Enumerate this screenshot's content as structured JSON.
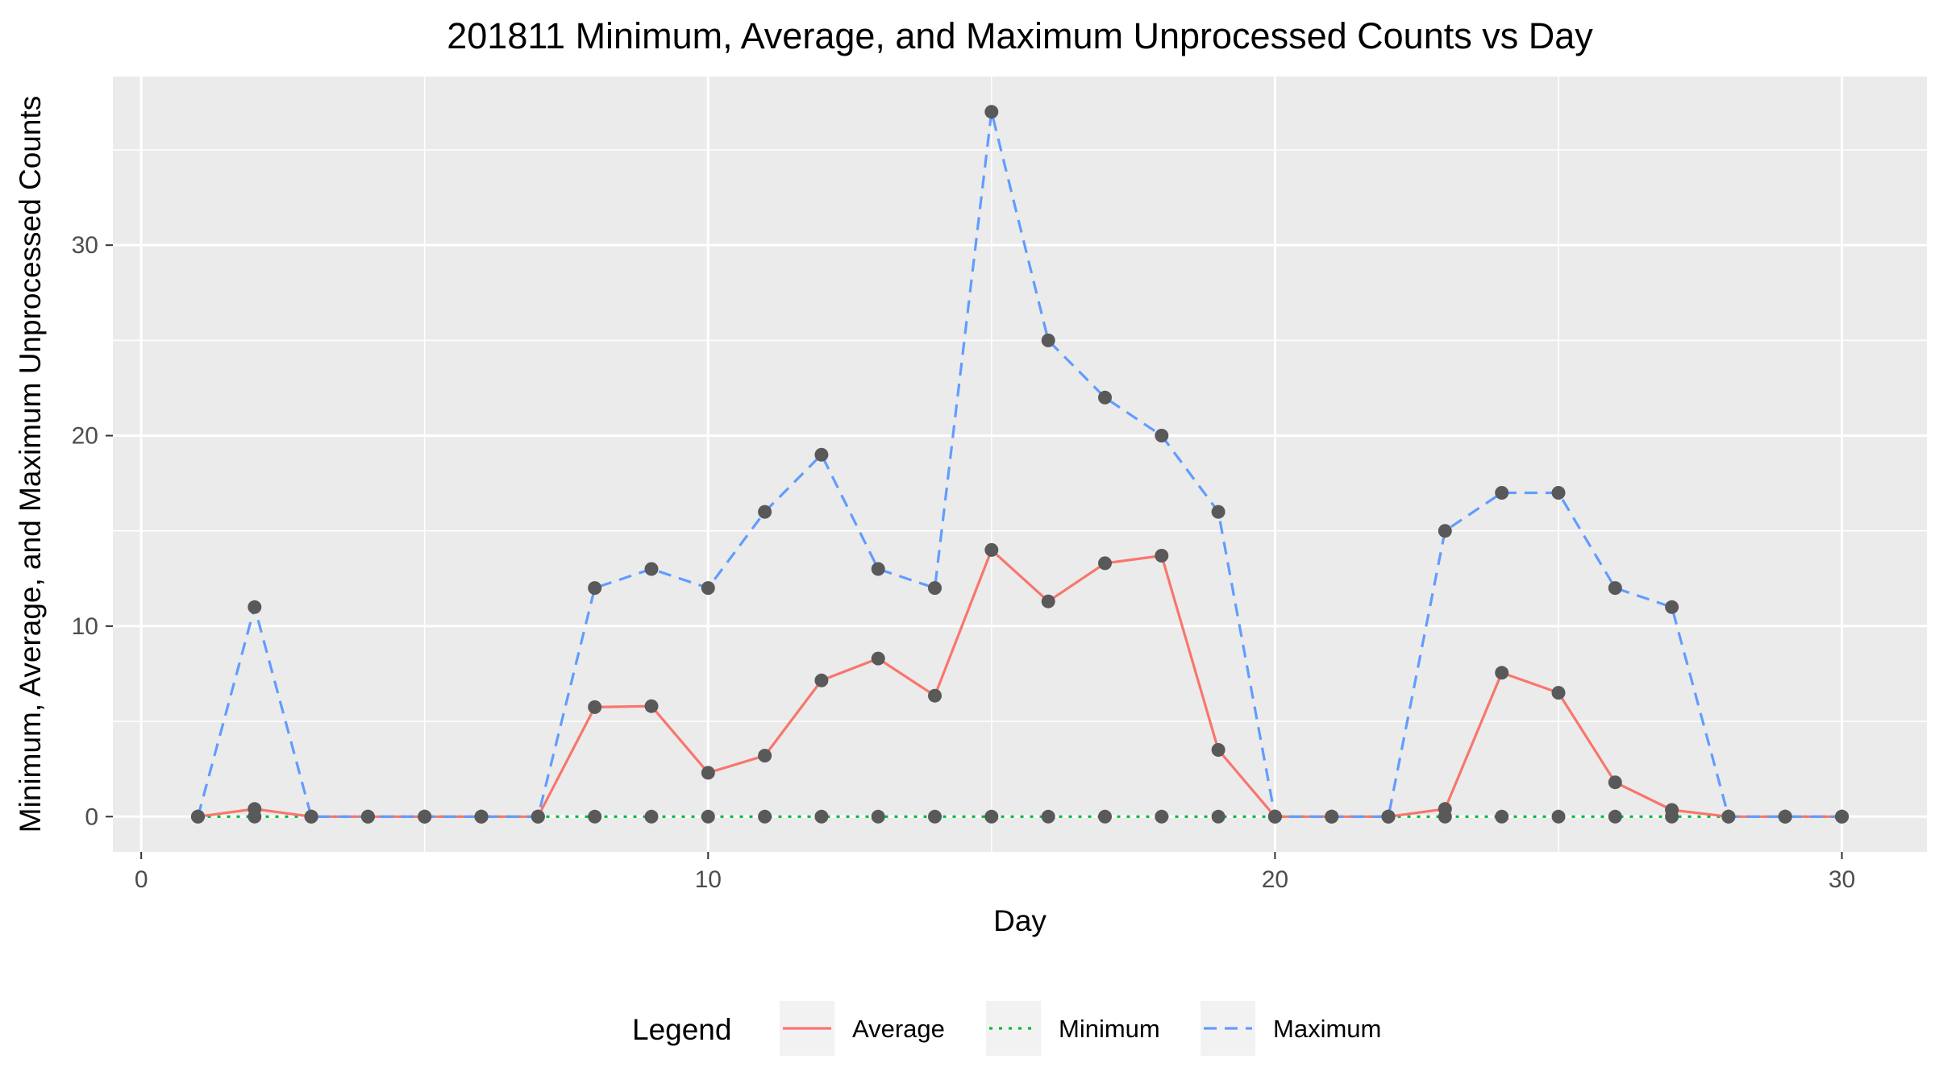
{
  "chart_data": {
    "type": "line",
    "title": "201811 Minimum, Average, and Maximum Unprocessed Counts vs Day",
    "xlabel": "Day",
    "ylabel": "Minimum, Average, and Maximum Unprocessed Counts",
    "xlim": [
      -0.5,
      31.5
    ],
    "ylim": [
      -1.85,
      38.85
    ],
    "x_ticks": [
      0,
      10,
      20,
      30
    ],
    "x_tick_labels": [
      "0",
      "10",
      "20",
      "30"
    ],
    "x_minor_ticks": [
      5,
      15,
      25
    ],
    "y_ticks": [
      0,
      10,
      20,
      30
    ],
    "y_tick_labels": [
      "0",
      "10",
      "20",
      "30"
    ],
    "y_minor_ticks": [
      5,
      15,
      25,
      35
    ],
    "grid": true,
    "legend_position": "bottom",
    "legend_title": "Legend",
    "point_color": "#595959",
    "x": [
      1,
      2,
      3,
      4,
      5,
      6,
      7,
      8,
      9,
      10,
      11,
      12,
      13,
      14,
      15,
      16,
      17,
      18,
      19,
      20,
      21,
      22,
      23,
      24,
      25,
      26,
      27,
      28,
      29,
      30
    ],
    "series": [
      {
        "name": "Average",
        "color": "#F8766D",
        "dash": "solid",
        "values": [
          0,
          0.4,
          0,
          0,
          0,
          0,
          0,
          5.75,
          5.8,
          2.3,
          3.2,
          7.15,
          8.3,
          6.35,
          14,
          11.3,
          13.3,
          13.7,
          3.5,
          0,
          0,
          0,
          0.4,
          7.55,
          6.5,
          1.8,
          0.35,
          0,
          0,
          0
        ]
      },
      {
        "name": "Minimum",
        "color": "#00BA38",
        "dash": "dotted",
        "values": [
          0,
          0,
          0,
          0,
          0,
          0,
          0,
          0,
          0,
          0,
          0,
          0,
          0,
          0,
          0,
          0,
          0,
          0,
          0,
          0,
          0,
          0,
          0,
          0,
          0,
          0,
          0,
          0,
          0,
          0
        ]
      },
      {
        "name": "Maximum",
        "color": "#619CFF",
        "dash": "dashed",
        "values": [
          0,
          11,
          0,
          0,
          0,
          0,
          0,
          12,
          13,
          12,
          16,
          19,
          13,
          12,
          37,
          25,
          22,
          20,
          16,
          0,
          0,
          0,
          15,
          17,
          17,
          12,
          11,
          0,
          0,
          0
        ]
      }
    ]
  }
}
